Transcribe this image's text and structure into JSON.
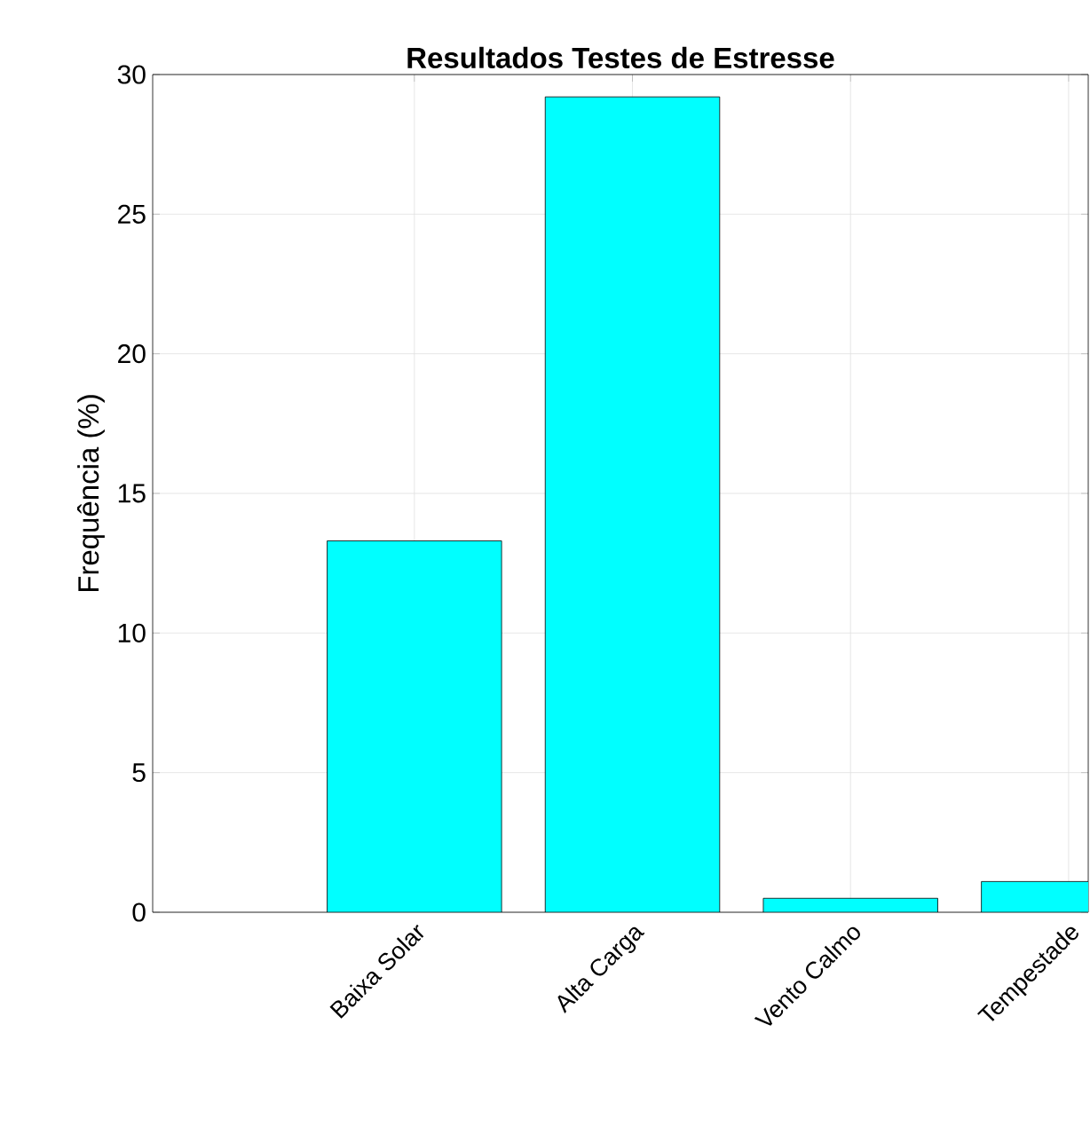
{
  "chart_data": {
    "type": "bar",
    "title": "Resultados Testes de Estresse",
    "ylabel": "Frequência (%)",
    "categories": [
      "Baixa Solar",
      "Alta Carga",
      "Vento Calmo",
      "Tempestade"
    ],
    "values": [
      13.3,
      29.2,
      0.5,
      1.1
    ],
    "color": "#00ffff",
    "ylim": [
      0,
      30
    ],
    "yticks": [
      0,
      5,
      10,
      15,
      20,
      25,
      30
    ],
    "grid": true
  }
}
